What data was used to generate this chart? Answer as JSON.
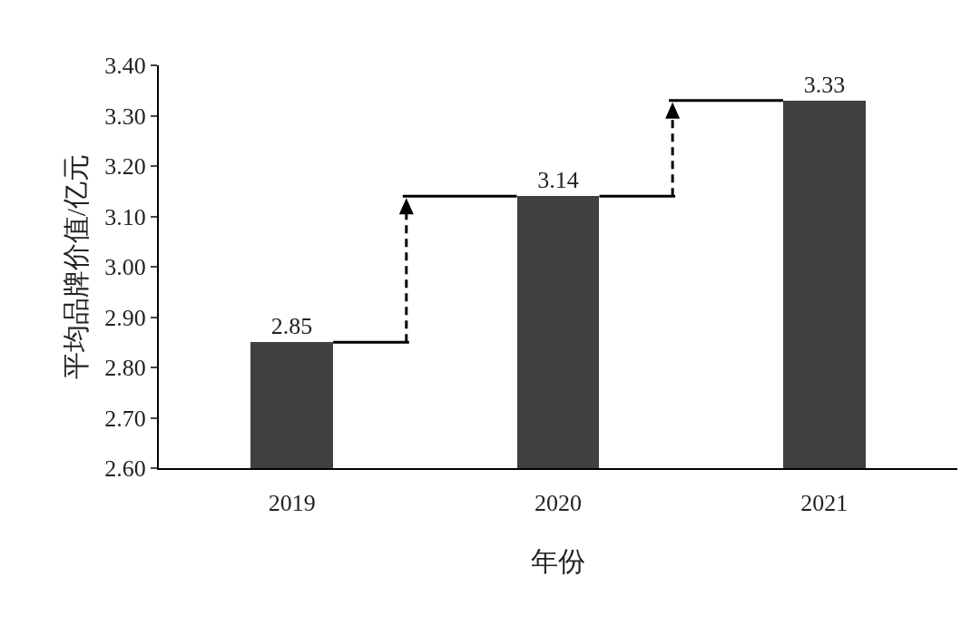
{
  "chart_data": {
    "type": "bar",
    "categories": [
      "2019",
      "2020",
      "2021"
    ],
    "values": [
      2.85,
      3.14,
      3.33
    ],
    "color": "#404040",
    "xlabel": "年份",
    "ylabel": "平均品牌价值/亿元",
    "ylim": [
      2.6,
      3.4
    ],
    "yticks": [
      {
        "value": 2.6,
        "label": "2.60"
      },
      {
        "value": 2.7,
        "label": "2.70"
      },
      {
        "value": 2.8,
        "label": "2.80"
      },
      {
        "value": 2.9,
        "label": "2.90"
      },
      {
        "value": 3.0,
        "label": "3.00"
      },
      {
        "value": 3.1,
        "label": "3.10"
      },
      {
        "value": 3.2,
        "label": "3.20"
      },
      {
        "value": 3.3,
        "label": "3.30"
      },
      {
        "value": 3.4,
        "label": "3.40"
      }
    ],
    "data_labels": true,
    "grid": false,
    "legend": false
  }
}
